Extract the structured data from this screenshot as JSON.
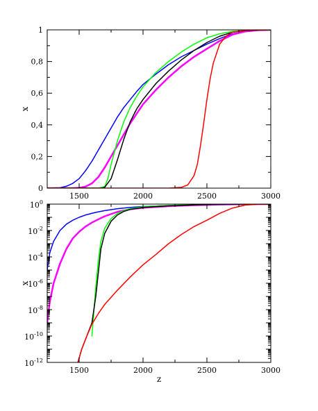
{
  "chart_data": [
    {
      "type": "line",
      "title": "",
      "xlabel": "",
      "ylabel": "x",
      "xlim": [
        1250,
        3000
      ],
      "ylim": [
        0,
        1
      ],
      "yscale": "linear",
      "grid": false,
      "x_ticks": [
        1500,
        2000,
        2500,
        3000
      ],
      "x_tick_labels": [
        "1500",
        "2000",
        "2500",
        "3000"
      ],
      "y_ticks": [
        0,
        0.2,
        0.4,
        0.6,
        0.8,
        1
      ],
      "y_tick_labels": [
        "0",
        "0,2",
        "0,4",
        "0,6",
        "0,8",
        "1"
      ],
      "series": [
        {
          "color": "#0000ff",
          "width": 1.5,
          "x": [
            1250,
            1350,
            1400,
            1450,
            1500,
            1550,
            1600,
            1650,
            1700,
            1750,
            1800,
            1850,
            1900,
            1950,
            2000,
            2100,
            2200,
            2300,
            2400,
            2500,
            2600,
            2700,
            2800,
            2900,
            3000
          ],
          "y": [
            0,
            0.003,
            0.012,
            0.03,
            0.06,
            0.11,
            0.17,
            0.24,
            0.31,
            0.38,
            0.45,
            0.51,
            0.56,
            0.61,
            0.655,
            0.72,
            0.78,
            0.83,
            0.87,
            0.91,
            0.945,
            0.975,
            0.99,
            0.998,
            1
          ]
        },
        {
          "color": "#ff00ff",
          "width": 2.5,
          "x": [
            1250,
            1450,
            1500,
            1550,
            1600,
            1650,
            1700,
            1750,
            1800,
            1850,
            1900,
            1950,
            2000,
            2100,
            2200,
            2300,
            2400,
            2500,
            2600,
            2700,
            2800,
            2900,
            3000
          ],
          "y": [
            0,
            0,
            0.002,
            0.01,
            0.03,
            0.07,
            0.13,
            0.2,
            0.27,
            0.34,
            0.41,
            0.47,
            0.53,
            0.62,
            0.7,
            0.77,
            0.83,
            0.88,
            0.93,
            0.97,
            0.99,
            0.998,
            1
          ]
        },
        {
          "color": "#00ff00",
          "width": 1.5,
          "x": [
            1250,
            1650,
            1700,
            1725,
            1750,
            1800,
            1850,
            1900,
            1950,
            2000,
            2100,
            2200,
            2300,
            2400,
            2500,
            2600,
            2700,
            2800,
            2900,
            3000
          ],
          "y": [
            0,
            0,
            0.01,
            0.06,
            0.15,
            0.3,
            0.42,
            0.51,
            0.58,
            0.64,
            0.73,
            0.8,
            0.86,
            0.91,
            0.95,
            0.975,
            0.99,
            0.997,
            0.999,
            1
          ]
        },
        {
          "color": "#000000",
          "width": 1.5,
          "x": [
            1250,
            1675,
            1700,
            1750,
            1800,
            1850,
            1900,
            1950,
            2000,
            2100,
            2200,
            2300,
            2400,
            2500,
            2600,
            2700,
            2800,
            2900,
            3000
          ],
          "y": [
            0,
            0,
            0.005,
            0.06,
            0.18,
            0.31,
            0.42,
            0.5,
            0.56,
            0.66,
            0.74,
            0.81,
            0.87,
            0.92,
            0.96,
            0.985,
            0.995,
            0.999,
            1
          ]
        },
        {
          "color": "#ff0000",
          "width": 1.5,
          "x": [
            1250,
            2200,
            2300,
            2350,
            2400,
            2425,
            2450,
            2475,
            2500,
            2525,
            2550,
            2600,
            2650,
            2700,
            2800,
            2900,
            3000
          ],
          "y": [
            0,
            0,
            0.005,
            0.02,
            0.08,
            0.15,
            0.27,
            0.41,
            0.56,
            0.69,
            0.79,
            0.91,
            0.96,
            0.985,
            0.997,
            0.999,
            1
          ]
        }
      ]
    },
    {
      "type": "line",
      "title": "",
      "xlabel": "z",
      "ylabel": "x",
      "xlim": [
        1250,
        3000
      ],
      "ylim": [
        1e-12,
        1
      ],
      "yscale": "log",
      "grid": false,
      "x_ticks": [
        1500,
        2000,
        2500,
        3000
      ],
      "x_tick_labels": [
        "1500",
        "2000",
        "2500",
        "3000"
      ],
      "y_ticks": [
        1e-12,
        1e-10,
        1e-08,
        1e-06,
        0.0001,
        0.01,
        1
      ],
      "y_tick_labels": [
        {
          "base": "10",
          "exp": "-12"
        },
        {
          "base": "10",
          "exp": "-10"
        },
        {
          "base": "10",
          "exp": "-8"
        },
        {
          "base": "10",
          "exp": "-6"
        },
        {
          "base": "10",
          "exp": "-4"
        },
        {
          "base": "10",
          "exp": "-2"
        },
        {
          "base": "10",
          "exp": "0"
        }
      ],
      "series": [
        {
          "color": "#0000ff",
          "width": 1.5,
          "x": [
            1250,
            1270,
            1300,
            1350,
            1400,
            1450,
            1500,
            1550,
            1600,
            1650,
            1700,
            1800,
            1900,
            2000,
            2200,
            2400,
            2600,
            2800,
            3000
          ],
          "y": [
            1e-05,
            0.0002,
            0.0015,
            0.01,
            0.03,
            0.06,
            0.1,
            0.15,
            0.2,
            0.26,
            0.32,
            0.45,
            0.56,
            0.65,
            0.78,
            0.87,
            0.945,
            0.99,
            1
          ]
        },
        {
          "color": "#ff00ff",
          "width": 2.5,
          "x": [
            1250,
            1270,
            1300,
            1350,
            1400,
            1450,
            1500,
            1550,
            1600,
            1650,
            1700,
            1800,
            1900,
            2000,
            2200,
            2400,
            2600,
            2800,
            3000
          ],
          "y": [
            1e-09,
            4e-08,
            1e-06,
            3e-05,
            0.0004,
            0.0025,
            0.008,
            0.02,
            0.04,
            0.07,
            0.12,
            0.26,
            0.41,
            0.53,
            0.7,
            0.83,
            0.93,
            0.99,
            1
          ]
        },
        {
          "color": "#00ff00",
          "width": 1.5,
          "x": [
            1600,
            1630,
            1650,
            1670,
            1700,
            1750,
            1800,
            1850,
            1900,
            2000,
            2200,
            2400,
            2600,
            2800,
            3000
          ],
          "y": [
            1e-10,
            5e-07,
            5e-05,
            0.0015,
            0.015,
            0.08,
            0.2,
            0.32,
            0.45,
            0.64,
            0.8,
            0.91,
            0.975,
            0.997,
            1
          ]
        },
        {
          "color": "#000000",
          "width": 1.5,
          "x": [
            1490,
            1520,
            1560,
            1600,
            1630,
            1650,
            1670,
            1700,
            1750,
            1800,
            1850,
            1900,
            2000,
            2200,
            2400,
            2600,
            2800,
            3000
          ],
          "y": [
            1e-12,
            1e-11,
            1e-10,
            1e-09,
            1e-07,
            6e-06,
            0.0004,
            0.006,
            0.05,
            0.15,
            0.28,
            0.4,
            0.56,
            0.74,
            0.87,
            0.96,
            0.995,
            1
          ]
        },
        {
          "color": "#ff0000",
          "width": 1.5,
          "x": [
            1490,
            1520,
            1560,
            1600,
            1650,
            1700,
            1800,
            1900,
            2000,
            2100,
            2200,
            2300,
            2400,
            2500,
            2600,
            2700,
            2800,
            2900,
            3000
          ],
          "y": [
            1e-12,
            1e-11,
            1e-10,
            8e-10,
            5e-09,
            2.5e-08,
            3e-07,
            3e-06,
            2.5e-05,
            0.00015,
            0.001,
            0.005,
            0.02,
            0.06,
            0.2,
            0.5,
            0.85,
            0.97,
            1
          ]
        }
      ]
    }
  ]
}
